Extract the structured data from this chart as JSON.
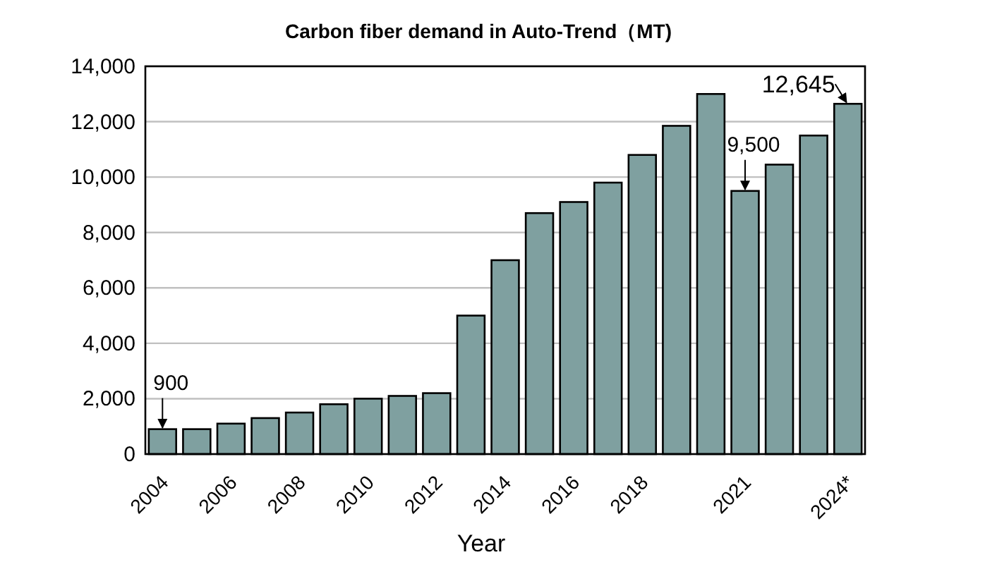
{
  "chart_data": {
    "type": "bar",
    "title": "Carbon fiber demand in Auto-Trend（MT)",
    "xlabel": "Year",
    "categories": [
      "2004",
      null,
      "2006",
      null,
      "2008",
      null,
      "2010",
      null,
      "2012",
      null,
      "2014",
      null,
      "2016",
      null,
      "2018",
      null,
      null,
      "2021",
      null,
      null,
      "2024*"
    ],
    "values": [
      900,
      900,
      1100,
      1300,
      1500,
      1800,
      2000,
      2100,
      2200,
      5000,
      7000,
      8700,
      9100,
      9800,
      10800,
      11850,
      13000,
      9500,
      10450,
      11500,
      12645
    ],
    "color": "#7fa0a0",
    "ylim": [
      0,
      14000
    ],
    "yticks": [
      0,
      {
        "value": 2000,
        "label": "2,000"
      },
      {
        "value": 4000,
        "label": "4,000"
      },
      {
        "value": 6000,
        "label": "6,000"
      },
      {
        "value": 8000,
        "label": "8,000"
      },
      {
        "value": 10000,
        "label": "10,000"
      },
      {
        "value": 12000,
        "label": "12,000"
      },
      {
        "value": 14000,
        "label": "14,000"
      }
    ],
    "grid": "y",
    "annotations": [
      {
        "text": "900",
        "x": "2004",
        "y": 900
      },
      {
        "text": "9,500",
        "x": "2021",
        "y": 9500
      },
      {
        "text": "12,645",
        "x": "2024*",
        "y": 12645
      }
    ]
  }
}
